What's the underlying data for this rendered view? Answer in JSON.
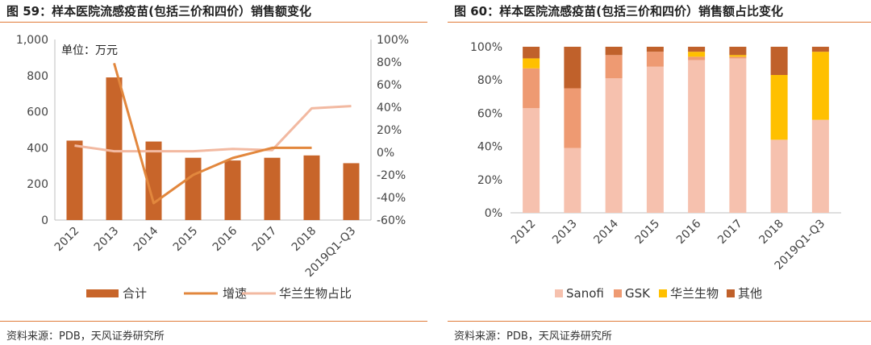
{
  "colors": {
    "accent": "#E07B39",
    "bar": "#C8652A",
    "growth": "#E2873D",
    "share": "#F2B9A1",
    "sanofi": "#F6C1AE",
    "gsk": "#EE9A72",
    "hualan": "#FFC000",
    "other": "#C0612B"
  },
  "left": {
    "title": "图 59：样本医院流感疫苗(包括三价和四价）销售额变化",
    "source": "资料来源：PDB，天风证券研究所"
  },
  "right": {
    "title": "图 60：样本医院流感疫苗(包括三价和四价）销售额占比变化",
    "source": "资料来源：PDB，天风证券研究所"
  },
  "chart_data": [
    {
      "type": "bar",
      "unit_note": "单位：万元",
      "categories": [
        "2012",
        "2013",
        "2014",
        "2015",
        "2016",
        "2017",
        "2018",
        "2019Q1-Q3"
      ],
      "y_ticks": [
        "1,000",
        "800",
        "600",
        "400",
        "200",
        "0"
      ],
      "y2_ticks": [
        "100%",
        "80%",
        "60%",
        "40%",
        "20%",
        "0%",
        "-20%",
        "-40%",
        "-60%"
      ],
      "ylim": [
        0,
        1000
      ],
      "y2lim": [
        -60,
        100
      ],
      "grid": false,
      "series": [
        {
          "name": "合计",
          "type": "bar",
          "axis": "left",
          "values": [
            440,
            790,
            435,
            345,
            330,
            345,
            358,
            315
          ]
        },
        {
          "name": "增速",
          "type": "line",
          "axis": "right",
          "values": [
            null,
            79,
            -45,
            -20,
            -5,
            4,
            4,
            null
          ]
        },
        {
          "name": "华兰生物占比",
          "type": "line",
          "axis": "right",
          "values": [
            6,
            1,
            1,
            1,
            3,
            2,
            39,
            41
          ]
        }
      ],
      "legend": [
        "合计",
        "增速",
        "华兰生物占比"
      ],
      "legend_position": "bottom"
    },
    {
      "type": "bar",
      "stacked": true,
      "categories": [
        "2012",
        "2013",
        "2014",
        "2015",
        "2016",
        "2017",
        "2018",
        "2019Q1-Q3"
      ],
      "y_ticks": [
        "100%",
        "80%",
        "60%",
        "40%",
        "20%",
        "0%"
      ],
      "ylim": [
        0,
        100
      ],
      "grid": false,
      "series": [
        {
          "name": "Sanofi",
          "values": [
            63,
            39,
            81,
            88,
            92,
            93,
            44,
            56
          ]
        },
        {
          "name": "GSK",
          "values": [
            24,
            36,
            14,
            9,
            2,
            1,
            0,
            0
          ]
        },
        {
          "name": "华兰生物",
          "values": [
            6,
            0,
            0,
            0,
            3,
            1,
            39,
            41
          ]
        },
        {
          "name": "其他",
          "values": [
            7,
            25,
            5,
            3,
            3,
            5,
            17,
            3
          ]
        }
      ],
      "legend": [
        "Sanofi",
        "GSK",
        "华兰生物",
        "其他"
      ],
      "legend_position": "bottom"
    }
  ]
}
